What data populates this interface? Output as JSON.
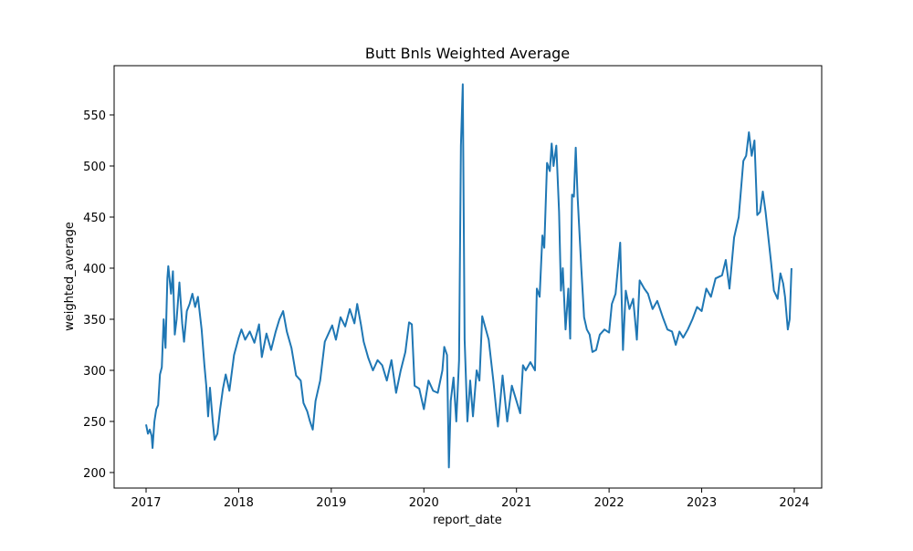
{
  "chart_data": {
    "type": "line",
    "title": "Butt Bnls Weighted Average",
    "x_label": "report_date",
    "y_label": "weighted_average",
    "color": "#1f77b4",
    "grid": false,
    "x": [
      2017.0,
      2017.02,
      2017.04,
      2017.06,
      2017.07,
      2017.09,
      2017.11,
      2017.13,
      2017.15,
      2017.17,
      2017.19,
      2017.21,
      2017.23,
      2017.24,
      2017.27,
      2017.29,
      2017.31,
      2017.33,
      2017.36,
      2017.39,
      2017.41,
      2017.44,
      2017.47,
      2017.5,
      2017.53,
      2017.56,
      2017.6,
      2017.63,
      2017.65,
      2017.67,
      2017.69,
      2017.72,
      2017.74,
      2017.77,
      2017.8,
      2017.83,
      2017.86,
      2017.9,
      2017.95,
      2018.0,
      2018.03,
      2018.07,
      2018.12,
      2018.17,
      2018.22,
      2018.25,
      2018.3,
      2018.35,
      2018.4,
      2018.44,
      2018.48,
      2018.52,
      2018.57,
      2018.62,
      2018.67,
      2018.7,
      2018.74,
      2018.77,
      2018.8,
      2018.83,
      2018.88,
      2018.93,
      2018.97,
      2019.01,
      2019.05,
      2019.1,
      2019.15,
      2019.2,
      2019.25,
      2019.28,
      2019.32,
      2019.35,
      2019.4,
      2019.45,
      2019.5,
      2019.55,
      2019.6,
      2019.65,
      2019.7,
      2019.75,
      2019.8,
      2019.84,
      2019.87,
      2019.9,
      2019.95,
      2020.0,
      2020.05,
      2020.1,
      2020.15,
      2020.2,
      2020.22,
      2020.25,
      2020.27,
      2020.29,
      2020.32,
      2020.35,
      2020.38,
      2020.4,
      2020.42,
      2020.44,
      2020.47,
      2020.5,
      2020.53,
      2020.57,
      2020.6,
      2020.63,
      2020.7,
      2020.75,
      2020.8,
      2020.85,
      2020.9,
      2020.95,
      2021.0,
      2021.04,
      2021.07,
      2021.1,
      2021.15,
      2021.2,
      2021.22,
      2021.25,
      2021.28,
      2021.3,
      2021.33,
      2021.36,
      2021.38,
      2021.4,
      2021.43,
      2021.46,
      2021.48,
      2021.5,
      2021.53,
      2021.56,
      2021.58,
      2021.6,
      2021.62,
      2021.64,
      2021.66,
      2021.7,
      2021.73,
      2021.76,
      2021.79,
      2021.82,
      2021.86,
      2021.9,
      2021.95,
      2022.0,
      2022.03,
      2022.07,
      2022.1,
      2022.12,
      2022.15,
      2022.18,
      2022.22,
      2022.26,
      2022.3,
      2022.33,
      2022.38,
      2022.42,
      2022.47,
      2022.52,
      2022.58,
      2022.63,
      2022.68,
      2022.72,
      2022.76,
      2022.8,
      2022.85,
      2022.9,
      2022.95,
      2023.0,
      2023.05,
      2023.1,
      2023.15,
      2023.22,
      2023.26,
      2023.3,
      2023.35,
      2023.4,
      2023.45,
      2023.48,
      2023.51,
      2023.54,
      2023.57,
      2023.6,
      2023.63,
      2023.66,
      2023.69,
      2023.72,
      2023.75,
      2023.78,
      2023.82,
      2023.85,
      2023.88,
      2023.9,
      2023.93,
      2023.95,
      2023.97
    ],
    "values": [
      247,
      238,
      242,
      236,
      224,
      250,
      262,
      266,
      296,
      303,
      350,
      322,
      390,
      402,
      375,
      397,
      335,
      350,
      386,
      346,
      328,
      358,
      365,
      375,
      362,
      372,
      340,
      305,
      285,
      255,
      283,
      250,
      232,
      238,
      262,
      282,
      296,
      280,
      315,
      332,
      340,
      330,
      338,
      327,
      345,
      313,
      336,
      320,
      338,
      350,
      358,
      338,
      322,
      295,
      290,
      268,
      260,
      250,
      242,
      270,
      290,
      328,
      336,
      344,
      330,
      352,
      343,
      360,
      346,
      365,
      345,
      328,
      312,
      300,
      310,
      305,
      290,
      310,
      278,
      300,
      318,
      347,
      345,
      285,
      282,
      262,
      290,
      280,
      278,
      300,
      323,
      315,
      205,
      270,
      293,
      250,
      310,
      520,
      580,
      330,
      250,
      290,
      255,
      300,
      290,
      353,
      330,
      290,
      245,
      295,
      250,
      285,
      270,
      258,
      305,
      300,
      308,
      300,
      380,
      372,
      432,
      420,
      503,
      495,
      522,
      500,
      520,
      455,
      378,
      400,
      340,
      380,
      331,
      472,
      470,
      518,
      470,
      400,
      352,
      340,
      335,
      318,
      320,
      335,
      340,
      337,
      365,
      375,
      405,
      425,
      320,
      378,
      360,
      370,
      330,
      388,
      380,
      375,
      360,
      368,
      352,
      340,
      338,
      325,
      338,
      332,
      340,
      350,
      362,
      358,
      380,
      372,
      390,
      393,
      408,
      380,
      430,
      450,
      505,
      510,
      533,
      510,
      525,
      452,
      455,
      475,
      455,
      430,
      405,
      378,
      370,
      395,
      385,
      372,
      340,
      350,
      400
    ],
    "xlim": [
      2016.655,
      2024.296
    ],
    "xticks": [
      2017,
      2018,
      2019,
      2020,
      2021,
      2022,
      2023,
      2024
    ],
    "ylim": [
      184.8,
      598.2
    ],
    "yticks": [
      200,
      250,
      300,
      350,
      400,
      450,
      500,
      550
    ]
  }
}
